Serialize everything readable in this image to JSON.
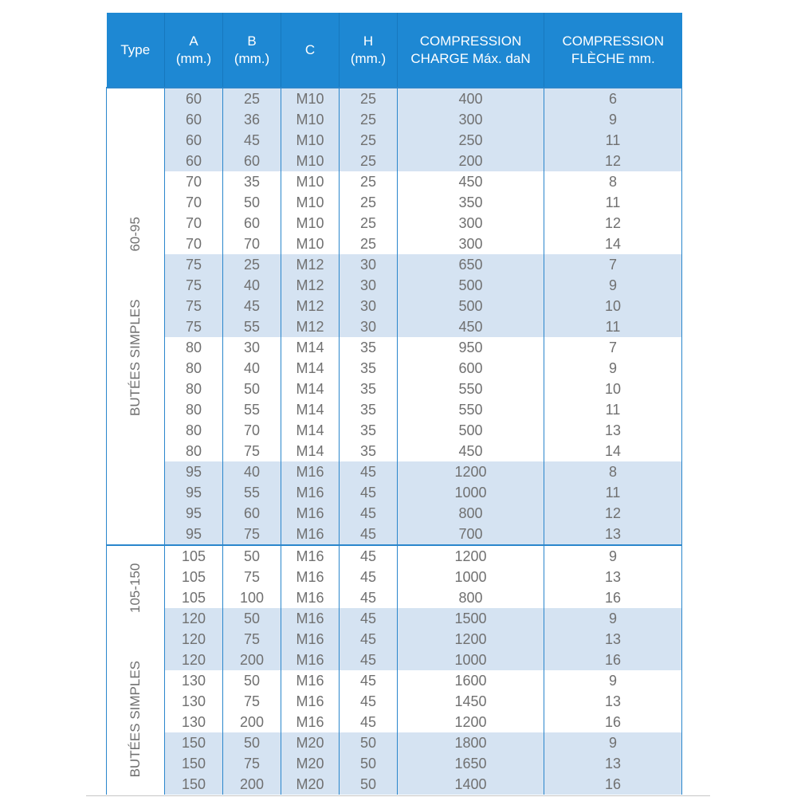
{
  "headers": [
    [
      "Type"
    ],
    [
      "A",
      "(mm.)"
    ],
    [
      "B",
      "(mm.)"
    ],
    [
      "C"
    ],
    [
      "H",
      "(mm.)"
    ],
    [
      "COMPRESSION",
      "CHARGE Máx. daN"
    ],
    [
      "COMPRESSION",
      "FLÈCHE mm."
    ]
  ],
  "sections": [
    {
      "name": "BUTÉES SIMPLES",
      "range": "60-95",
      "groups": [
        [
          [
            "60",
            "25",
            "M10",
            "25",
            "400",
            "6"
          ],
          [
            "60",
            "36",
            "M10",
            "25",
            "300",
            "9"
          ],
          [
            "60",
            "45",
            "M10",
            "25",
            "250",
            "11"
          ],
          [
            "60",
            "60",
            "M10",
            "25",
            "200",
            "12"
          ]
        ],
        [
          [
            "70",
            "35",
            "M10",
            "25",
            "450",
            "8"
          ],
          [
            "70",
            "50",
            "M10",
            "25",
            "350",
            "11"
          ],
          [
            "70",
            "60",
            "M10",
            "25",
            "300",
            "12"
          ],
          [
            "70",
            "70",
            "M10",
            "25",
            "300",
            "14"
          ]
        ],
        [
          [
            "75",
            "25",
            "M12",
            "30",
            "650",
            "7"
          ],
          [
            "75",
            "40",
            "M12",
            "30",
            "500",
            "9"
          ],
          [
            "75",
            "45",
            "M12",
            "30",
            "500",
            "10"
          ],
          [
            "75",
            "55",
            "M12",
            "30",
            "450",
            "11"
          ]
        ],
        [
          [
            "80",
            "30",
            "M14",
            "35",
            "950",
            "7"
          ],
          [
            "80",
            "40",
            "M14",
            "35",
            "600",
            "9"
          ],
          [
            "80",
            "50",
            "M14",
            "35",
            "550",
            "10"
          ],
          [
            "80",
            "55",
            "M14",
            "35",
            "550",
            "11"
          ],
          [
            "80",
            "70",
            "M14",
            "35",
            "500",
            "13"
          ],
          [
            "80",
            "75",
            "M14",
            "35",
            "450",
            "14"
          ]
        ],
        [
          [
            "95",
            "40",
            "M16",
            "45",
            "1200",
            "8"
          ],
          [
            "95",
            "55",
            "M16",
            "45",
            "1000",
            "11"
          ],
          [
            "95",
            "60",
            "M16",
            "45",
            "800",
            "12"
          ],
          [
            "95",
            "75",
            "M16",
            "45",
            "700",
            "13"
          ]
        ]
      ]
    },
    {
      "name": "BUTÉES SIMPLES",
      "range": "105-150",
      "groups": [
        [
          [
            "105",
            "50",
            "M16",
            "45",
            "1200",
            "9"
          ],
          [
            "105",
            "75",
            "M16",
            "45",
            "1000",
            "13"
          ],
          [
            "105",
            "100",
            "M16",
            "45",
            "800",
            "16"
          ]
        ],
        [
          [
            "120",
            "50",
            "M16",
            "45",
            "1500",
            "9"
          ],
          [
            "120",
            "75",
            "M16",
            "45",
            "1200",
            "13"
          ],
          [
            "120",
            "200",
            "M16",
            "45",
            "1000",
            "16"
          ]
        ],
        [
          [
            "130",
            "50",
            "M16",
            "45",
            "1600",
            "9"
          ],
          [
            "130",
            "75",
            "M16",
            "45",
            "1450",
            "13"
          ],
          [
            "130",
            "200",
            "M16",
            "45",
            "1200",
            "16"
          ]
        ],
        [
          [
            "150",
            "50",
            "M20",
            "50",
            "1800",
            "9"
          ],
          [
            "150",
            "75",
            "M20",
            "50",
            "1650",
            "13"
          ],
          [
            "150",
            "200",
            "M20",
            "50",
            "1400",
            "16"
          ]
        ]
      ]
    }
  ]
}
